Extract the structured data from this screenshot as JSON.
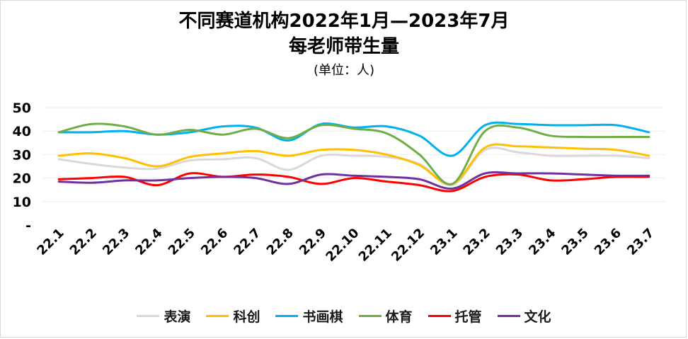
{
  "chart_data": {
    "type": "line",
    "title_line1": "不同赛道机构2022年1月—2023年7月",
    "title_line2": "每老师带生量",
    "subtitle": "(单位：人)",
    "categories": [
      "22.1",
      "22.2",
      "22.3",
      "22.4",
      "22.5",
      "22.6",
      "22.7",
      "22.8",
      "22.9",
      "22.10",
      "22.11",
      "22.12",
      "23.1",
      "23.2",
      "23.3",
      "23.4",
      "23.5",
      "23.6",
      "23.7"
    ],
    "y_ticks": [
      "-",
      "10",
      "20",
      "30",
      "40",
      "50"
    ],
    "ylim": [
      0,
      50
    ],
    "series": [
      {
        "name": "表演",
        "color": "#d9d9d9",
        "values": [
          28,
          26,
          24.5,
          24,
          27.5,
          28,
          28.5,
          23.5,
          29.5,
          29.5,
          29,
          26,
          17,
          32,
          31,
          29.5,
          29.5,
          29.5,
          28.5
        ]
      },
      {
        "name": "科创",
        "color": "#ffc000",
        "values": [
          29.5,
          30.5,
          28.5,
          25,
          29,
          30.5,
          31.5,
          29.5,
          32,
          32,
          30,
          25.5,
          17.5,
          33,
          33.5,
          33,
          32.5,
          32,
          29.5
        ]
      },
      {
        "name": "书画棋",
        "color": "#00b0f0",
        "values": [
          39.5,
          39.5,
          40,
          38.5,
          39.5,
          42,
          41.5,
          36,
          43,
          41.5,
          42,
          38,
          29.5,
          42.5,
          43,
          42.5,
          42.5,
          42.5,
          39.5
        ]
      },
      {
        "name": "体育",
        "color": "#70ad47",
        "values": [
          39.5,
          43,
          42,
          38.5,
          40.5,
          38.5,
          41,
          37,
          42.5,
          41,
          39,
          30,
          17.5,
          40,
          41.5,
          38,
          37.5,
          37.5,
          37.5
        ]
      },
      {
        "name": "托管",
        "color": "#ff0000",
        "values": [
          19.5,
          20,
          20.5,
          17,
          22,
          20.5,
          21.5,
          20.5,
          17.5,
          20,
          18.5,
          17,
          14.5,
          20.5,
          21.5,
          19,
          19.5,
          20.5,
          20.5
        ]
      },
      {
        "name": "文化",
        "color": "#7030a0",
        "values": [
          18.5,
          18,
          19,
          19,
          20,
          20.5,
          20,
          17.5,
          21.5,
          21,
          20.5,
          19.5,
          15.5,
          22,
          22,
          22,
          21.5,
          21,
          21
        ]
      }
    ]
  }
}
